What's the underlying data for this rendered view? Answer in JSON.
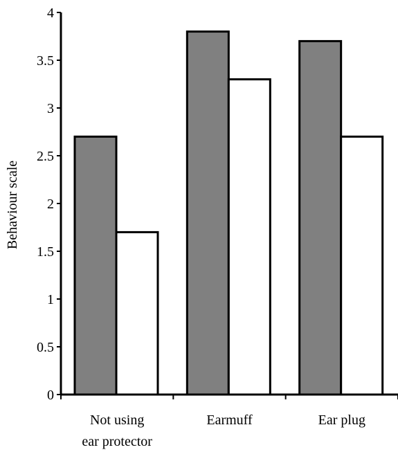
{
  "chart_data": {
    "type": "bar",
    "categories": [
      [
        "Not using",
        "ear protector"
      ],
      [
        "Earmuff"
      ],
      [
        "Ear plug"
      ]
    ],
    "series": [
      {
        "fill": "#808080",
        "values": [
          2.7,
          3.8,
          3.7
        ]
      },
      {
        "fill": "#ffffff",
        "values": [
          1.7,
          3.3,
          2.7
        ]
      }
    ],
    "title": "",
    "xlabel": "",
    "ylabel": "Behaviour scale",
    "ylim": [
      0,
      4
    ],
    "yticks": [
      "0",
      "0.5",
      "1",
      "1.5",
      "2",
      "2.5",
      "3",
      "3.5",
      "4"
    ],
    "grid": false,
    "legend": "none"
  }
}
